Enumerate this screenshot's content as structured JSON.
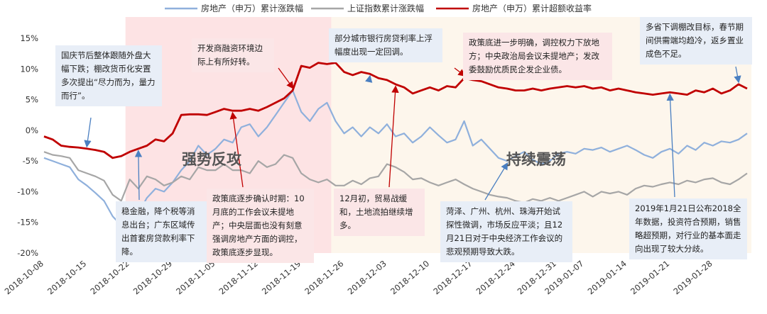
{
  "colors": {
    "house_cum": "#8fb0dc",
    "sh_cum": "#a6a6a6",
    "excess": "#c00000",
    "region_attack": "#fde3e4",
    "region_volatile": "#fdf6ec",
    "ann_blue": "#e8eef7",
    "ann_pink": "#fbe6e7",
    "ann_beige": "#fbf4e9",
    "arrow": "#4a7fc1",
    "arrow_red": "#c00000"
  },
  "chart_data": {
    "type": "line",
    "ylim": [
      -20,
      15
    ],
    "yticks": [
      "15%",
      "10%",
      "5%",
      "0%",
      "-5%",
      "-10%",
      "-15%",
      "-20%"
    ],
    "x_dates": [
      "2018-10-08",
      "2018-10-09",
      "2018-10-10",
      "2018-10-11",
      "2018-10-12",
      "2018-10-15",
      "2018-10-16",
      "2018-10-17",
      "2018-10-18",
      "2018-10-19",
      "2018-10-22",
      "2018-10-23",
      "2018-10-24",
      "2018-10-25",
      "2018-10-26",
      "2018-10-29",
      "2018-10-30",
      "2018-10-31",
      "2018-11-01",
      "2018-11-02",
      "2018-11-05",
      "2018-11-06",
      "2018-11-07",
      "2018-11-08",
      "2018-11-09",
      "2018-11-12",
      "2018-11-13",
      "2018-11-14",
      "2018-11-15",
      "2018-11-16",
      "2018-11-19",
      "2018-11-20",
      "2018-11-21",
      "2018-11-22",
      "2018-11-23",
      "2018-11-26",
      "2018-11-27",
      "2018-11-28",
      "2018-11-29",
      "2018-11-30",
      "2018-12-03",
      "2018-12-04",
      "2018-12-05",
      "2018-12-06",
      "2018-12-07",
      "2018-12-10",
      "2018-12-11",
      "2018-12-12",
      "2018-12-13",
      "2018-12-14",
      "2018-12-17",
      "2018-12-18",
      "2018-12-19",
      "2018-12-20",
      "2018-12-21",
      "2018-12-24",
      "2018-12-25",
      "2018-12-26",
      "2018-12-27",
      "2018-12-28",
      "2019-01-02",
      "2019-01-03",
      "2019-01-04",
      "2019-01-07",
      "2019-01-08",
      "2019-01-09",
      "2019-01-10",
      "2019-01-11",
      "2019-01-14",
      "2019-01-15",
      "2019-01-16",
      "2019-01-17",
      "2019-01-18",
      "2019-01-21",
      "2019-01-22",
      "2019-01-23",
      "2019-01-24",
      "2019-01-25",
      "2019-01-28",
      "2019-01-29",
      "2019-01-30",
      "2019-01-31",
      "2019-02-01"
    ],
    "x_tick_labels": [
      "2018-10-08",
      "2018-10-15",
      "2018-10-22",
      "2018-10-29",
      "2018-11-05",
      "2018-11-12",
      "2018-11-19",
      "2018-11-26",
      "2018-12-03",
      "2018-12-10",
      "2018-12-17",
      "2018-12-24",
      "2018-12-31",
      "2019-01-07",
      "2019-01-14",
      "2019-01-21",
      "2019-01-28"
    ],
    "x_tick_index": [
      0,
      5,
      10,
      15,
      20,
      25,
      30,
      35,
      40,
      45,
      50,
      55,
      59.8,
      63,
      68,
      73,
      78
    ],
    "series": [
      {
        "name": "房地产（申万）累计涨跌幅",
        "color_key": "house_cum",
        "values": [
          -4.5,
          -5.0,
          -5.5,
          -6.0,
          -8.0,
          -9.0,
          -10.2,
          -11.5,
          -14.0,
          -15.5,
          -12.0,
          -13.5,
          -11.0,
          -9.5,
          -10.0,
          -8.5,
          -6.5,
          -5.0,
          -2.5,
          -4.0,
          -3.0,
          -1.5,
          -2.0,
          0.5,
          1.0,
          -1.0,
          0.5,
          2.5,
          4.5,
          6.5,
          3.0,
          1.5,
          3.5,
          4.5,
          1.5,
          -0.5,
          0.5,
          -1.0,
          0.5,
          -0.5,
          1.0,
          -1.0,
          -0.5,
          -2.0,
          -1.0,
          0.5,
          -0.8,
          -2.0,
          -1.5,
          1.5,
          -2.5,
          -1.5,
          -3.0,
          -4.5,
          -5.0,
          -4.2,
          -3.5,
          -4.8,
          -5.5,
          -5.0,
          -3.8,
          -3.5,
          -3.8,
          -3.0,
          -3.2,
          -2.8,
          -3.5,
          -3.0,
          -2.5,
          -3.2,
          -4.0,
          -4.5,
          -3.5,
          -3.0,
          -3.8,
          -2.5,
          -3.2,
          -2.0,
          -2.5,
          -1.8,
          -2.0,
          -1.5,
          -0.5
        ]
      },
      {
        "name": "上证指数累计涨跌幅",
        "color_key": "sh_cum",
        "values": [
          -3.5,
          -4.0,
          -4.2,
          -4.5,
          -6.5,
          -7.0,
          -7.5,
          -8.2,
          -10.5,
          -11.5,
          -8.0,
          -9.5,
          -7.5,
          -8.0,
          -9.0,
          -8.5,
          -7.5,
          -8.0,
          -6.0,
          -6.5,
          -6.5,
          -5.5,
          -6.5,
          -6.5,
          -7.0,
          -5.0,
          -6.0,
          -5.5,
          -4.0,
          -4.5,
          -7.0,
          -8.0,
          -8.5,
          -8.0,
          -9.0,
          -9.0,
          -8.2,
          -8.8,
          -7.8,
          -7.5,
          -5.5,
          -6.0,
          -6.8,
          -8.0,
          -7.8,
          -8.5,
          -9.0,
          -8.5,
          -8.0,
          -8.8,
          -9.5,
          -10.0,
          -10.5,
          -10.8,
          -11.0,
          -11.5,
          -11.8,
          -11.2,
          -11.5,
          -11.0,
          -11.5,
          -11.0,
          -10.5,
          -10.0,
          -10.8,
          -10.0,
          -10.3,
          -10.0,
          -10.5,
          -9.5,
          -9.0,
          -9.2,
          -8.8,
          -8.5,
          -8.8,
          -8.2,
          -8.5,
          -8.0,
          -7.8,
          -8.5,
          -8.8,
          -8.0,
          -7.0
        ]
      },
      {
        "name": "房地产（申万）累计超额收益率",
        "color_key": "excess",
        "values": [
          -1.0,
          -1.5,
          -2.5,
          -2.7,
          -2.8,
          -3.0,
          -3.2,
          -3.5,
          -4.5,
          -4.2,
          -3.5,
          -3.0,
          -2.5,
          -1.5,
          -1.8,
          -0.5,
          2.5,
          2.6,
          2.6,
          2.5,
          3.0,
          3.5,
          3.2,
          3.2,
          3.5,
          3.2,
          3.8,
          4.5,
          5.2,
          6.5,
          10.5,
          10.2,
          11.0,
          10.8,
          11.0,
          9.5,
          9.0,
          9.5,
          9.2,
          8.5,
          8.2,
          7.5,
          7.0,
          6.0,
          6.5,
          7.0,
          6.5,
          7.2,
          7.0,
          8.5,
          8.2,
          8.0,
          7.5,
          7.0,
          6.8,
          6.5,
          6.5,
          6.8,
          6.5,
          6.8,
          7.0,
          7.2,
          7.0,
          7.2,
          6.8,
          7.0,
          6.5,
          6.8,
          6.5,
          6.2,
          6.0,
          5.8,
          6.0,
          6.2,
          6.0,
          5.8,
          6.5,
          6.2,
          6.8,
          6.0,
          6.5,
          7.5,
          6.8
        ]
      }
    ],
    "regions": [
      {
        "label": "强势反攻",
        "from_index": 9.5,
        "to_index": 33.5,
        "color_key": "region_attack"
      },
      {
        "label": "持续震荡",
        "from_index": 33.5,
        "to_index": 82.5,
        "color_key": "region_volatile"
      }
    ]
  },
  "annotations": [
    {
      "id": "ann-national-day",
      "style": "blue",
      "text": "国庆节后整体跟随外盘大幅下跌；棚改货币化安置多次提出“尽力而为，量力而行”。",
      "arrow_to_index": 5,
      "arrow_series": 2
    },
    {
      "id": "ann-stable-finance",
      "style": "blue",
      "text": "稳金融，降个税等消息出台；广东区域传出首套房贷款利率下降。",
      "arrow_to_index": 11,
      "arrow_series": 2
    },
    {
      "id": "ann-financing",
      "style": "pink",
      "text": "开发商融资环境边际上有所好转。",
      "arrow_to_index": 29,
      "arrow_series": 2
    },
    {
      "id": "ann-policy-confirm",
      "style": "pink",
      "text": "政策底逐步确认时期：10月底的工作会议未提地产；中央层面也没有刻意强调房地产方面的调控，政策底逐步显现。",
      "arrow_to_index": 22,
      "arrow_series": 2
    },
    {
      "id": "ann-bank-rate",
      "style": "blue",
      "text": "部分城市银行房贷利率上浮幅度出现一定回调。",
      "arrow_to_index": 38,
      "arrow_series": 2
    },
    {
      "id": "ann-trade-truce",
      "style": "pink",
      "text": "12月初，贸易战缓和，土地流拍继续增多。",
      "arrow_to_index": 41,
      "arrow_series": 2
    },
    {
      "id": "ann-policy-clear",
      "style": "pink",
      "text": "政策底进一步明确，调控权力下放地方；中央政治局会议未提地产；发改委鼓励优质民企发企业债。",
      "arrow_to_index": 49,
      "arrow_series": 2
    },
    {
      "id": "ann-heze",
      "style": "blue",
      "text": "菏泽、广州、杭州、珠海开始试探性微调，市场反应平淡；且12月21日对于中央经济工作会议的悲观预期导致大跌。",
      "arrow_to_index": 54,
      "arrow_series": 0
    },
    {
      "id": "ann-jan21",
      "style": "blue",
      "text": "2019年1月21日公布2018全年数据，投资符合预期，销售略超预期，对行业的基本面走向出现了较大分歧。",
      "arrow_to_index": 73,
      "arrow_series": 2
    },
    {
      "id": "ann-spring",
      "style": "blue",
      "text": "多省下调棚改目标，春节期间供需端均趋冷，返乡置业成色不足。",
      "arrow_to_index": 81,
      "arrow_series": 2
    }
  ]
}
